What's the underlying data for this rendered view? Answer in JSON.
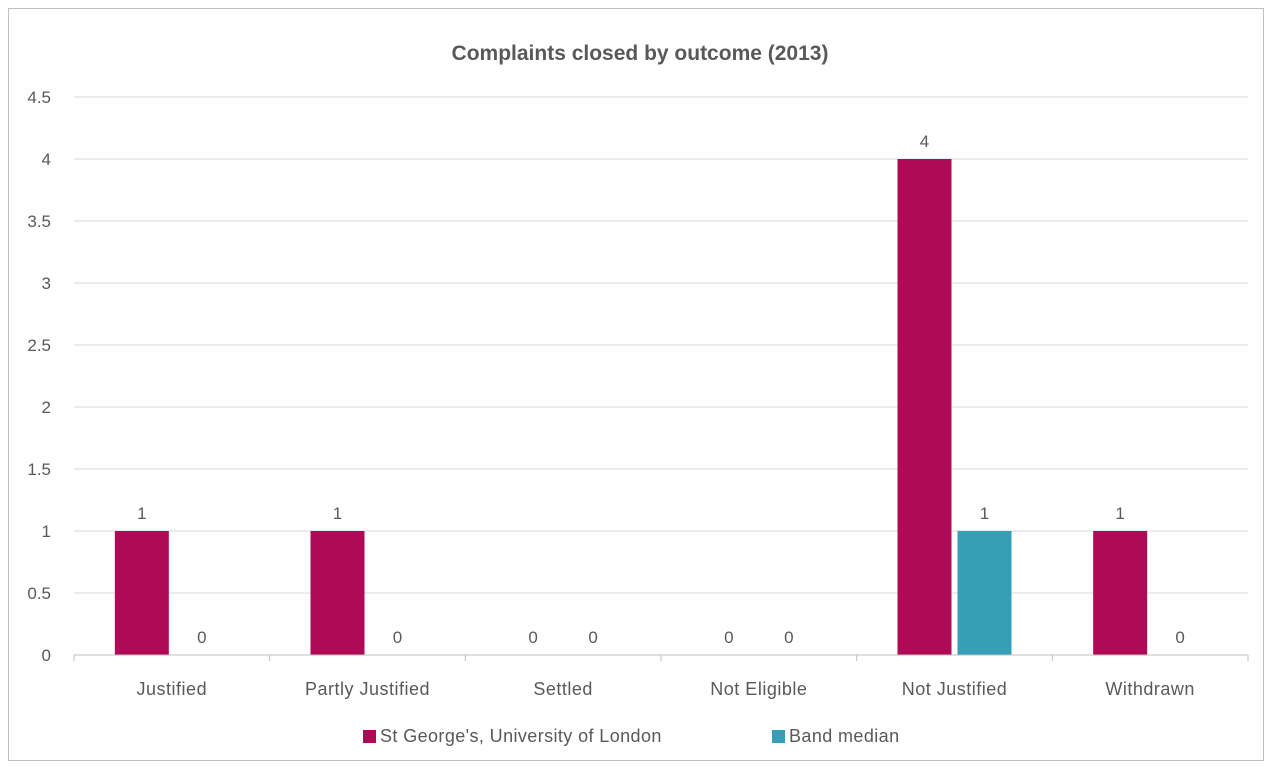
{
  "chart_data": {
    "type": "bar",
    "title": "Complaints closed by outcome (2013)",
    "categories": [
      "Justified",
      "Partly Justified",
      "Settled",
      "Not Eligible",
      "Not Justified",
      "Withdrawn"
    ],
    "series": [
      {
        "name": "St George's, University of London",
        "values": [
          1,
          1,
          0,
          0,
          4,
          1
        ],
        "color": "#b00a56"
      },
      {
        "name": "Band median",
        "values": [
          0,
          0,
          0,
          0,
          1,
          0
        ],
        "color": "#369eb5"
      }
    ],
    "ylim": [
      0,
      4.5
    ],
    "yticks": [
      "0",
      "0.5",
      "1",
      "1.5",
      "2",
      "2.5",
      "3",
      "3.5",
      "4",
      "4.5"
    ],
    "grid": true,
    "data_labels": true,
    "legend": "bottom"
  }
}
